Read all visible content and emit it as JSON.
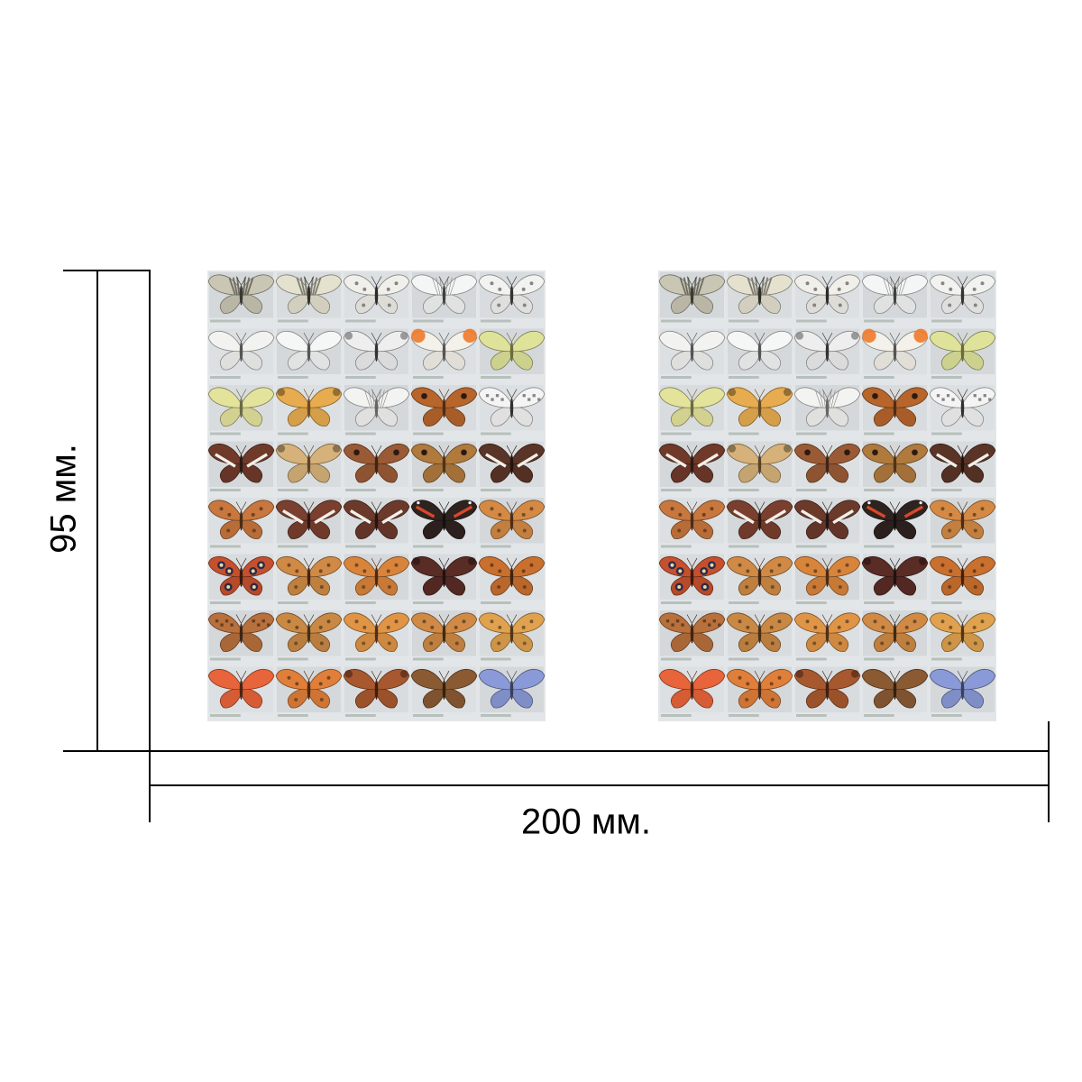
{
  "dimensions": {
    "height_label": "95 мм.",
    "width_label": "200 мм."
  },
  "sheets": {
    "count": 2,
    "layout": {
      "columns": 5,
      "rows": 8
    },
    "tiles": [
      {
        "wing": "#c9c6b4",
        "body": "#3a3a33",
        "pattern": "stripes",
        "name": "swallowtail"
      },
      {
        "wing": "#e5e1cf",
        "body": "#2e2e2a",
        "pattern": "stripes",
        "name": "scarce-swallowtail"
      },
      {
        "wing": "#f0efea",
        "body": "#2b2b2b",
        "pattern": "spots",
        "name": "apollo"
      },
      {
        "wing": "#f4f5f5",
        "body": "#404040",
        "pattern": "veins",
        "name": "black-veined-white"
      },
      {
        "wing": "#f2f2f0",
        "body": "#333333",
        "pattern": "spots",
        "name": "white"
      },
      {
        "wing": "#f2f2f0",
        "body": "#555555",
        "pattern": "plain",
        "name": "large-white"
      },
      {
        "wing": "#f5f6f6",
        "body": "#555555",
        "pattern": "plain",
        "name": "small-white"
      },
      {
        "wing": "#eeeeee",
        "body": "#333333",
        "pattern": "tips",
        "name": "green-veined-white"
      },
      {
        "wing": "#f4f1ea",
        "body": "#555555",
        "pattern": "orange-tips",
        "name": "orange-tip"
      },
      {
        "wing": "#dfe39a",
        "body": "#6b6b3a",
        "pattern": "plain",
        "name": "brimstone"
      },
      {
        "wing": "#e4e39c",
        "body": "#6a6a45",
        "pattern": "plain",
        "name": "clouded-yellow"
      },
      {
        "wing": "#e7ac4f",
        "body": "#6b4a26",
        "pattern": "border",
        "name": "clouded-yellow-2"
      },
      {
        "wing": "#f3f3f2",
        "body": "#666666",
        "pattern": "veins",
        "name": "wood-white"
      },
      {
        "wing": "#b7652b",
        "body": "#4f2c17",
        "pattern": "eyes",
        "name": "meadow-brown"
      },
      {
        "wing": "#f4f4f4",
        "body": "#2f2f2f",
        "pattern": "checker",
        "name": "marbled-white"
      },
      {
        "wing": "#6f3a2a",
        "body": "#2b1a12",
        "pattern": "white-band",
        "name": "white-admiral"
      },
      {
        "wing": "#d6b27a",
        "body": "#5b4226",
        "pattern": "border",
        "name": "grayling"
      },
      {
        "wing": "#9a5a35",
        "body": "#3d2416",
        "pattern": "eyes",
        "name": "wall"
      },
      {
        "wing": "#b07a3d",
        "body": "#4d331b",
        "pattern": "eyes",
        "name": "ringlet"
      },
      {
        "wing": "#5a3426",
        "body": "#221510",
        "pattern": "white-band",
        "name": "poplar-admiral"
      },
      {
        "wing": "#c8773e",
        "body": "#4a2b18",
        "pattern": "spots",
        "name": "map"
      },
      {
        "wing": "#7a3f2e",
        "body": "#2a1710",
        "pattern": "white-band",
        "name": "purple-emperor"
      },
      {
        "wing": "#6b3a2b",
        "body": "#241510",
        "pattern": "white-band",
        "name": "white-admiral-2"
      },
      {
        "wing": "#2f2320",
        "body": "#151010",
        "pattern": "red-band",
        "name": "red-admiral"
      },
      {
        "wing": "#d48a45",
        "body": "#4a2c16",
        "pattern": "spots",
        "name": "painted-lady"
      },
      {
        "wing": "#c6502d",
        "body": "#3a1a10",
        "pattern": "peacock",
        "name": "peacock"
      },
      {
        "wing": "#d08a45",
        "body": "#402414",
        "pattern": "spots",
        "name": "small-tortoiseshell"
      },
      {
        "wing": "#d9843b",
        "body": "#4a2a14",
        "pattern": "spots",
        "name": "large-tortoiseshell"
      },
      {
        "wing": "#5a2c26",
        "body": "#1f1210",
        "pattern": "border",
        "name": "camberwell-beauty"
      },
      {
        "wing": "#c9702f",
        "body": "#3d2212",
        "pattern": "spots",
        "name": "comma"
      },
      {
        "wing": "#b8703c",
        "body": "#3d2515",
        "pattern": "checker",
        "name": "heath-fritillary"
      },
      {
        "wing": "#c98944",
        "body": "#453018",
        "pattern": "spots",
        "name": "fritillary"
      },
      {
        "wing": "#e09446",
        "body": "#4d3018",
        "pattern": "spots",
        "name": "fritillary-2"
      },
      {
        "wing": "#d08a45",
        "body": "#3f2a16",
        "pattern": "spots",
        "name": "silver-washed-fritillary"
      },
      {
        "wing": "#e0a24e",
        "body": "#4d361a",
        "pattern": "spots",
        "name": "dark-green-fritillary"
      },
      {
        "wing": "#e8643a",
        "body": "#4a2416",
        "pattern": "plain",
        "name": "scarce-copper"
      },
      {
        "wing": "#e07f3a",
        "body": "#4a2816",
        "pattern": "spots",
        "name": "small-copper"
      },
      {
        "wing": "#a8582e",
        "body": "#3d1f12",
        "pattern": "border",
        "name": "purple-shot-copper"
      },
      {
        "wing": "#8a5a33",
        "body": "#33210f",
        "pattern": "plain",
        "name": "brown-argus"
      },
      {
        "wing": "#8a9ad8",
        "body": "#3a3f5a",
        "pattern": "plain",
        "name": "common-blue"
      }
    ]
  }
}
